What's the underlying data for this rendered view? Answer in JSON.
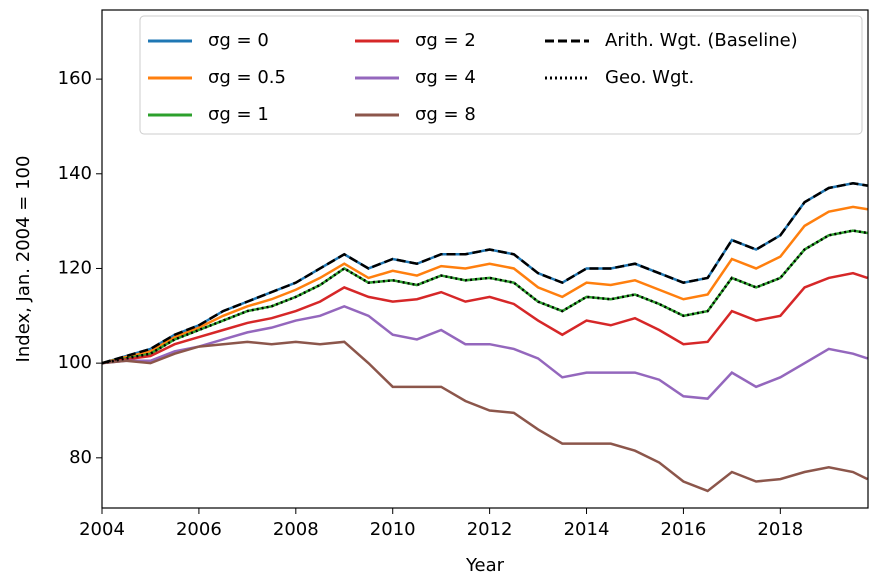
{
  "chart_data": {
    "type": "line",
    "xlabel": "Year",
    "ylabel": "Index, Jan. 2004 = 100",
    "x": [
      2004,
      2004.5,
      2005,
      2005.5,
      2006,
      2006.5,
      2007,
      2007.5,
      2008,
      2008.5,
      2009,
      2009.5,
      2010,
      2010.5,
      2011,
      2011.5,
      2012,
      2012.5,
      2013,
      2013.5,
      2014,
      2014.5,
      2015,
      2015.5,
      2016,
      2016.5,
      2017,
      2017.5,
      2018,
      2018.5,
      2019,
      2019.5,
      2019.8
    ],
    "xlim": [
      2004,
      2019.83
    ],
    "xticks": [
      2004,
      2006,
      2008,
      2010,
      2012,
      2014,
      2016,
      2018
    ],
    "ylim": [
      69.4,
      174.6
    ],
    "yticks": [
      80,
      100,
      120,
      140,
      160
    ],
    "series": [
      {
        "name": "σg = 0",
        "color": "#1f77b4",
        "style": "solid",
        "values": [
          100,
          101.5,
          103,
          106,
          108,
          111,
          113,
          115,
          117,
          120,
          123,
          120,
          122,
          121,
          123,
          123,
          124,
          123,
          119,
          117,
          120,
          120,
          121,
          119,
          117,
          118,
          126,
          124,
          127,
          134,
          137,
          138,
          137.5
        ]
      },
      {
        "name": "σg = 0.5",
        "color": "#ff7f0e",
        "style": "solid",
        "values": [
          100,
          101.3,
          102.5,
          105.5,
          107.5,
          110,
          112,
          113.5,
          115.5,
          118,
          121,
          118,
          119.5,
          118.5,
          120.5,
          120,
          121,
          120,
          116,
          114,
          117,
          116.5,
          117.5,
          115.5,
          113.5,
          114.5,
          122,
          120,
          122.5,
          129,
          132,
          133,
          132.5
        ]
      },
      {
        "name": "σg = 1",
        "color": "#2ca02c",
        "style": "solid",
        "values": [
          100,
          101,
          102,
          105,
          107,
          109,
          111,
          112,
          114,
          116.5,
          120,
          117,
          117.5,
          116.5,
          118.5,
          117.5,
          118,
          117,
          113,
          111,
          114,
          113.5,
          114.5,
          112.5,
          110,
          111,
          118,
          116,
          118,
          124,
          127,
          128,
          127.5
        ]
      },
      {
        "name": "σg = 2",
        "color": "#d62728",
        "style": "solid",
        "values": [
          100,
          100.8,
          101.5,
          104,
          105.5,
          107,
          108.5,
          109.5,
          111,
          113,
          116,
          114,
          113,
          113.5,
          115,
          113,
          114,
          112.5,
          109,
          106,
          109,
          108,
          109.5,
          107,
          104,
          104.5,
          111,
          109,
          110,
          116,
          118,
          119,
          118
        ]
      },
      {
        "name": "σg = 4",
        "color": "#9467bd",
        "style": "solid",
        "values": [
          100,
          100.5,
          100.5,
          102.5,
          103.5,
          105,
          106.5,
          107.5,
          109,
          110,
          112,
          110,
          106,
          105,
          107,
          104,
          104,
          103,
          101,
          97,
          98,
          98,
          98,
          96.5,
          93,
          92.5,
          98,
          95,
          97,
          100,
          103,
          102,
          101
        ]
      },
      {
        "name": "σg = 8",
        "color": "#8c564b",
        "style": "solid",
        "values": [
          100,
          100.5,
          100,
          102,
          103.5,
          104,
          104.5,
          104,
          104.5,
          104,
          104.5,
          100,
          95,
          95,
          95,
          92,
          90,
          89.5,
          86,
          83,
          83,
          83,
          81.5,
          79,
          75,
          73,
          77,
          75,
          75.5,
          77,
          78,
          77,
          75.5
        ]
      },
      {
        "name": "Arith. Wgt. (Baseline)",
        "color": "#000000",
        "style": "dashed",
        "values": [
          100,
          101.5,
          103,
          106,
          108,
          111,
          113,
          115,
          117,
          120,
          123,
          120,
          122,
          121,
          123,
          123,
          124,
          123,
          119,
          117,
          120,
          120,
          121,
          119,
          117,
          118,
          126,
          124,
          127,
          134,
          137,
          138,
          137.5
        ]
      },
      {
        "name": "Geo. Wgt.",
        "color": "#000000",
        "style": "dotted",
        "values": [
          100,
          101,
          102,
          105,
          107,
          109,
          111,
          112,
          114,
          116.5,
          120,
          117,
          117.5,
          116.5,
          118.5,
          117.5,
          118,
          117,
          113,
          111,
          114,
          113.5,
          114.5,
          112.5,
          110,
          111,
          118,
          116,
          118,
          124,
          127,
          128,
          127.5
        ]
      }
    ]
  }
}
